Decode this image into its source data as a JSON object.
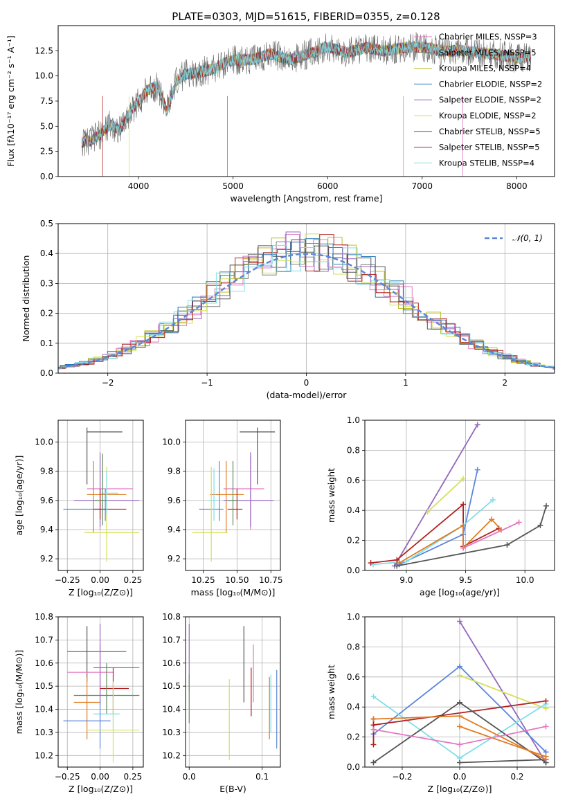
{
  "title": "PLATE=0303, MJD=51615, FIBERID=0355, z=0.128",
  "colors": {
    "Chabrier MILES": "#e377c2",
    "Salpeter MILES": "#7f7f7f",
    "Kroupa MILES": "#bcbd22",
    "Chabrier ELODIE": "#1f77b4",
    "Salpeter ELODIE": "#9467bd",
    "Kroupa ELODIE": "#d4e157",
    "Chabrier STELIB": "#555555",
    "Salpeter STELIB": "#b22222",
    "Kroupa STELIB": "#80deea",
    "orange": "#e07b22",
    "blue": "#5b86d9",
    "green": "#5e8c5e"
  },
  "chart_data": [
    {
      "id": "spectrum",
      "type": "line",
      "title": "PLATE=0303, MJD=51615, FIBERID=0355, z=0.128",
      "xlabel": "wavelength [Angstrom, rest frame]",
      "ylabel": "Flux [fλ10⁻¹⁷ erg cm⁻² s⁻¹ A⁻¹]",
      "xlim": [
        3150,
        8400
      ],
      "ylim": [
        0,
        15
      ],
      "xticks": [
        4000,
        5000,
        6000,
        7000,
        8000
      ],
      "yticks": [
        0.0,
        2.5,
        5.0,
        7.5,
        10.0,
        12.5
      ],
      "grid": false,
      "legend": "right",
      "series": [
        {
          "name": "Chabrier MILES, NSSP=3"
        },
        {
          "name": "Salpeter MILES, NSSP=5"
        },
        {
          "name": "Kroupa MILES, NSSP=4"
        },
        {
          "name": "Chabrier ELODIE, NSSP=2"
        },
        {
          "name": "Salpeter ELODIE, NSSP=2"
        },
        {
          "name": "Kroupa ELODIE, NSSP=2"
        },
        {
          "name": "Chabrier STELIB, NSSP=5"
        },
        {
          "name": "Salpeter STELIB, NSSP=5"
        },
        {
          "name": "Kroupa STELIB, NSSP=4"
        }
      ],
      "x": [
        3400,
        3500,
        3600,
        3700,
        3800,
        3900,
        4000,
        4100,
        4200,
        4300,
        4400,
        4500,
        4600,
        4700,
        4800,
        4900,
        5000,
        5200,
        5400,
        5600,
        5800,
        6000,
        6200,
        6400,
        6600,
        6800,
        7000,
        7200,
        7400,
        7600,
        7800,
        8000,
        8150
      ],
      "y": [
        3.4,
        3.6,
        4.2,
        5.2,
        4.6,
        6.2,
        7.5,
        8.6,
        9.0,
        6.5,
        9.5,
        10.2,
        10.3,
        10.5,
        10.7,
        11.2,
        11.6,
        11.6,
        12.2,
        11.6,
        12.2,
        12.9,
        12.3,
        12.8,
        12.5,
        12.8,
        12.9,
        12.5,
        12.5,
        12.3,
        12.1,
        11.8,
        11.8
      ]
    },
    {
      "id": "residuals",
      "type": "line",
      "xlabel": "(data-model)/error",
      "ylabel": "Normed distribution",
      "xlim": [
        -2.5,
        2.5
      ],
      "ylim": [
        0,
        0.5
      ],
      "xticks": [
        -2,
        -1,
        0,
        1,
        2
      ],
      "yticks": [
        0.0,
        0.1,
        0.2,
        0.3,
        0.4,
        0.5
      ],
      "grid": true,
      "legend": "top-right",
      "legend_label": "𝒩(0, 1)",
      "gaussian": {
        "mean": 0,
        "sigma": 1
      }
    },
    {
      "id": "age-vs-Z",
      "type": "scatter",
      "xlabel": "Z [log₁₀(Z/Z⊙)]",
      "ylabel": "age [log₁₀(age/yr)]",
      "xlim": [
        -0.32,
        0.33
      ],
      "ylim": [
        9.12,
        10.15
      ],
      "xticks": [
        -0.25,
        0.0,
        0.25
      ],
      "yticks": [
        9.2,
        9.4,
        9.6,
        9.8,
        10.0
      ],
      "grid": true,
      "errorbars": [
        {
          "c": "Chabrier STELIB",
          "x": -0.1,
          "y": 10.07,
          "xlo": -0.1,
          "xhi": 0.17,
          "ylo": 9.71,
          "yhi": 10.1
        },
        {
          "c": "Chabrier MILES",
          "x": 0.0,
          "y": 9.68,
          "xlo": -0.1,
          "xhi": 0.25,
          "ylo": 9.4,
          "yhi": 9.9
        },
        {
          "c": "orange",
          "x": -0.05,
          "y": 9.64,
          "xlo": -0.1,
          "xhi": 0.2,
          "ylo": 9.38,
          "yhi": 9.87
        },
        {
          "c": "Salpeter ELODIE",
          "x": 0.0,
          "y": 9.6,
          "xlo": -0.2,
          "xhi": 0.3,
          "ylo": 9.42,
          "yhi": 9.93
        },
        {
          "c": "blue",
          "x": 0.04,
          "y": 9.54,
          "xlo": -0.28,
          "xhi": 0.05,
          "ylo": 9.46,
          "yhi": 9.68
        },
        {
          "c": "Salpeter STELIB",
          "x": 0.0,
          "y": 9.54,
          "xlo": -0.05,
          "xhi": 0.2,
          "ylo": 9.47,
          "yhi": 9.68
        },
        {
          "c": "Kroupa ELODIE",
          "x": 0.05,
          "y": 9.38,
          "xlo": -0.12,
          "xhi": 0.3,
          "ylo": 9.18,
          "yhi": 9.83
        },
        {
          "c": "Kroupa STELIB",
          "x": 0.05,
          "y": 9.65,
          "xlo": 0.01,
          "xhi": 0.14,
          "ylo": 9.51,
          "yhi": 9.8
        },
        {
          "c": "green",
          "x": 0.02,
          "y": 9.6,
          "xlo": -0.05,
          "xhi": 0.05,
          "ylo": 9.43,
          "yhi": 9.92
        }
      ]
    },
    {
      "id": "age-vs-mass",
      "type": "scatter",
      "xlabel": "mass [log₁₀(M/M⊙)]",
      "ylabel": "",
      "xlim": [
        10.12,
        10.82
      ],
      "ylim": [
        9.12,
        10.15
      ],
      "xticks": [
        10.25,
        10.5,
        10.75
      ],
      "yticks": [
        9.2,
        9.4,
        9.6,
        9.8,
        10.0
      ],
      "grid": true,
      "errorbars": [
        {
          "c": "Chabrier STELIB",
          "x": 10.65,
          "y": 10.07,
          "xlo": 10.52,
          "xhi": 10.78,
          "ylo": 9.71,
          "yhi": 10.1
        },
        {
          "c": "Chabrier MILES",
          "x": 10.6,
          "y": 9.68,
          "xlo": 10.4,
          "xhi": 10.7,
          "ylo": 9.4,
          "yhi": 9.9
        },
        {
          "c": "orange",
          "x": 10.42,
          "y": 9.64,
          "xlo": 10.3,
          "xhi": 10.55,
          "ylo": 9.38,
          "yhi": 9.87
        },
        {
          "c": "Salpeter ELODIE",
          "x": 10.6,
          "y": 9.6,
          "xlo": 10.4,
          "xhi": 10.77,
          "ylo": 9.42,
          "yhi": 9.93
        },
        {
          "c": "blue",
          "x": 10.37,
          "y": 9.54,
          "xlo": 10.22,
          "xhi": 10.4,
          "ylo": 9.46,
          "yhi": 9.87
        },
        {
          "c": "Salpeter STELIB",
          "x": 10.5,
          "y": 9.54,
          "xlo": 10.43,
          "xhi": 10.54,
          "ylo": 9.47,
          "yhi": 9.68
        },
        {
          "c": "Kroupa ELODIE",
          "x": 10.31,
          "y": 9.38,
          "xlo": 10.17,
          "xhi": 10.43,
          "ylo": 9.18,
          "yhi": 9.83
        },
        {
          "c": "Kroupa STELIB",
          "x": 10.33,
          "y": 9.6,
          "xlo": 10.29,
          "xhi": 10.36,
          "ylo": 9.46,
          "yhi": 9.82
        },
        {
          "c": "green",
          "x": 10.47,
          "y": 9.6,
          "xlo": 10.43,
          "xhi": 10.51,
          "ylo": 9.43,
          "yhi": 9.87
        }
      ]
    },
    {
      "id": "massweight-vs-age",
      "type": "line",
      "xlabel": "age [log₁₀(age/yr)]",
      "ylabel": "mass weight",
      "xlim": [
        8.65,
        10.25
      ],
      "ylim": [
        0,
        1.0
      ],
      "xticks": [
        9.0,
        9.5,
        10.0
      ],
      "yticks": [
        0.0,
        0.2,
        0.4,
        0.6,
        0.8,
        1.0
      ],
      "grid": true,
      "series": [
        {
          "c": "Salpeter ELODIE",
          "x": [
            8.9,
            9.6
          ],
          "y": [
            0.03,
            0.97
          ]
        },
        {
          "c": "Kroupa ELODIE",
          "x": [
            9.18,
            9.48
          ],
          "y": [
            0.39,
            0.61
          ]
        },
        {
          "c": "blue",
          "x": [
            8.94,
            9.48,
            9.6
          ],
          "y": [
            0.04,
            0.24,
            0.67
          ]
        },
        {
          "c": "Kroupa STELIB",
          "x": [
            8.72,
            9.0,
            9.48,
            9.73
          ],
          "y": [
            0.04,
            0.06,
            0.3,
            0.47
          ]
        },
        {
          "c": "Salpeter STELIB",
          "x": [
            8.7,
            8.92,
            9.48,
            9.48,
            9.78
          ],
          "y": [
            0.05,
            0.07,
            0.44,
            0.16,
            0.28
          ]
        },
        {
          "c": "orange",
          "x": [
            8.94,
            9.48,
            9.48,
            9.72,
            9.8
          ],
          "y": [
            0.05,
            0.3,
            0.15,
            0.34,
            0.27
          ]
        },
        {
          "c": "Chabrier MILES",
          "x": [
            9.48,
            9.95
          ],
          "y": [
            0.15,
            0.32
          ]
        },
        {
          "c": "Chabrier STELIB",
          "x": [
            8.92,
            9.85,
            10.13,
            10.18
          ],
          "y": [
            0.03,
            0.17,
            0.3,
            0.43
          ]
        }
      ]
    },
    {
      "id": "mass-vs-Z",
      "type": "scatter",
      "xlabel": "Z [log₁₀(Z/Z⊙)]",
      "ylabel": "mass [log₁₀(M/M⊙)]",
      "xlim": [
        -0.32,
        0.33
      ],
      "ylim": [
        10.15,
        10.8
      ],
      "xticks": [
        -0.25,
        0.0,
        0.25
      ],
      "yticks": [
        10.2,
        10.3,
        10.4,
        10.5,
        10.6,
        10.7,
        10.8
      ],
      "grid": true,
      "errorbars": [
        {
          "c": "Chabrier STELIB",
          "x": -0.1,
          "y": 10.65,
          "xlo": -0.25,
          "xhi": 0.2,
          "ylo": 10.52,
          "yhi": 10.76
        },
        {
          "c": "Chabrier MILES",
          "x": 0.0,
          "y": 10.56,
          "xlo": -0.25,
          "xhi": 0.1,
          "ylo": 10.42,
          "yhi": 10.68
        },
        {
          "c": "Salpeter ELODIE",
          "x": 0.0,
          "y": 10.58,
          "xlo": -0.05,
          "xhi": 0.3,
          "ylo": 10.42,
          "yhi": 10.77
        },
        {
          "c": "Salpeter STELIB",
          "x": 0.1,
          "y": 10.49,
          "xlo": 0.0,
          "xhi": 0.22,
          "ylo": 10.38,
          "yhi": 10.58
        },
        {
          "c": "green",
          "x": 0.05,
          "y": 10.46,
          "xlo": -0.2,
          "xhi": 0.3,
          "ylo": 10.38,
          "yhi": 10.6
        },
        {
          "c": "orange",
          "x": -0.1,
          "y": 10.43,
          "xlo": -0.2,
          "xhi": 0.0,
          "ylo": 10.27,
          "yhi": 10.54
        },
        {
          "c": "Kroupa STELIB",
          "x": 0.1,
          "y": 10.38,
          "xlo": -0.05,
          "xhi": 0.15,
          "ylo": 10.31,
          "yhi": 10.5
        },
        {
          "c": "blue",
          "x": 0.0,
          "y": 10.35,
          "xlo": -0.28,
          "xhi": 0.08,
          "ylo": 10.23,
          "yhi": 10.44
        },
        {
          "c": "Kroupa ELODIE",
          "x": 0.1,
          "y": 10.31,
          "xlo": -0.1,
          "xhi": 0.3,
          "ylo": 10.17,
          "yhi": 10.52
        }
      ]
    },
    {
      "id": "mass-vs-ebv",
      "type": "scatter",
      "xlabel": "E(B-V)",
      "ylabel": "",
      "xlim": [
        -0.005,
        0.125
      ],
      "ylim": [
        10.15,
        10.8
      ],
      "xticks": [
        0.0,
        0.1
      ],
      "yticks": [
        10.2,
        10.3,
        10.4,
        10.5,
        10.6,
        10.7,
        10.8
      ],
      "grid": true,
      "errorbars": [
        {
          "c": "Salpeter ELODIE",
          "x": 0.0,
          "ylo": 10.48,
          "yhi": 10.77
        },
        {
          "c": "green",
          "x": 0.0,
          "ylo": 10.34,
          "yhi": 10.55
        },
        {
          "c": "Kroupa ELODIE",
          "x": 0.055,
          "ylo": 10.18,
          "yhi": 10.53
        },
        {
          "c": "Chabrier STELIB",
          "x": 0.075,
          "ylo": 10.43,
          "yhi": 10.76
        },
        {
          "c": "Salpeter STELIB",
          "x": 0.085,
          "ylo": 10.37,
          "yhi": 10.58
        },
        {
          "c": "Chabrier MILES",
          "x": 0.088,
          "ylo": 10.43,
          "yhi": 10.68
        },
        {
          "c": "orange",
          "x": 0.11,
          "ylo": 10.27,
          "yhi": 10.54
        },
        {
          "c": "Kroupa STELIB",
          "x": 0.112,
          "ylo": 10.3,
          "yhi": 10.55
        },
        {
          "c": "blue",
          "x": 0.12,
          "ylo": 10.23,
          "yhi": 10.57
        }
      ]
    },
    {
      "id": "massweight-vs-Z",
      "type": "line",
      "xlabel": "Z [log₁₀(Z/Z⊙)]",
      "ylabel": "mass weight",
      "xlim": [
        -0.33,
        0.33
      ],
      "ylim": [
        0,
        1.0
      ],
      "xticks": [
        -0.2,
        0.0,
        0.2
      ],
      "yticks": [
        0.0,
        0.2,
        0.4,
        0.6,
        0.8,
        1.0
      ],
      "grid": true,
      "series": [
        {
          "c": "Salpeter ELODIE",
          "x": [
            0.0,
            0.3
          ],
          "y": [
            0.97,
            0.03
          ]
        },
        {
          "c": "blue",
          "x": [
            -0.3,
            0.0,
            0.3
          ],
          "y": [
            0.22,
            0.67,
            0.1
          ]
        },
        {
          "c": "Kroupa ELODIE",
          "x": [
            0.0,
            0.3
          ],
          "y": [
            0.61,
            0.39
          ]
        },
        {
          "c": "Kroupa STELIB",
          "x": [
            -0.3,
            0.0,
            0.3
          ],
          "y": [
            0.47,
            0.06,
            0.42
          ]
        },
        {
          "c": "Salpeter STELIB",
          "x": [
            -0.3,
            0.3
          ],
          "y": [
            0.28,
            0.44
          ]
        },
        {
          "c": "Salpeter STELIB",
          "x": [
            -0.3,
            -0.3
          ],
          "y": [
            0.15,
            0.32
          ]
        },
        {
          "c": "Chabrier STELIB",
          "x": [
            -0.3,
            0.0,
            0.3
          ],
          "y": [
            0.03,
            0.43,
            0.03
          ]
        },
        {
          "c": "Chabrier STELIB",
          "x": [
            0.0,
            0.3
          ],
          "y": [
            0.03,
            0.05
          ]
        },
        {
          "c": "orange",
          "x": [
            -0.3,
            0.0,
            0.3
          ],
          "y": [
            0.32,
            0.34,
            0.05
          ]
        },
        {
          "c": "orange",
          "x": [
            0.0,
            0.3
          ],
          "y": [
            0.27,
            0.07
          ]
        },
        {
          "c": "Chabrier MILES",
          "x": [
            -0.3,
            0.0,
            0.3
          ],
          "y": [
            0.25,
            0.15,
            0.27
          ]
        }
      ]
    }
  ]
}
